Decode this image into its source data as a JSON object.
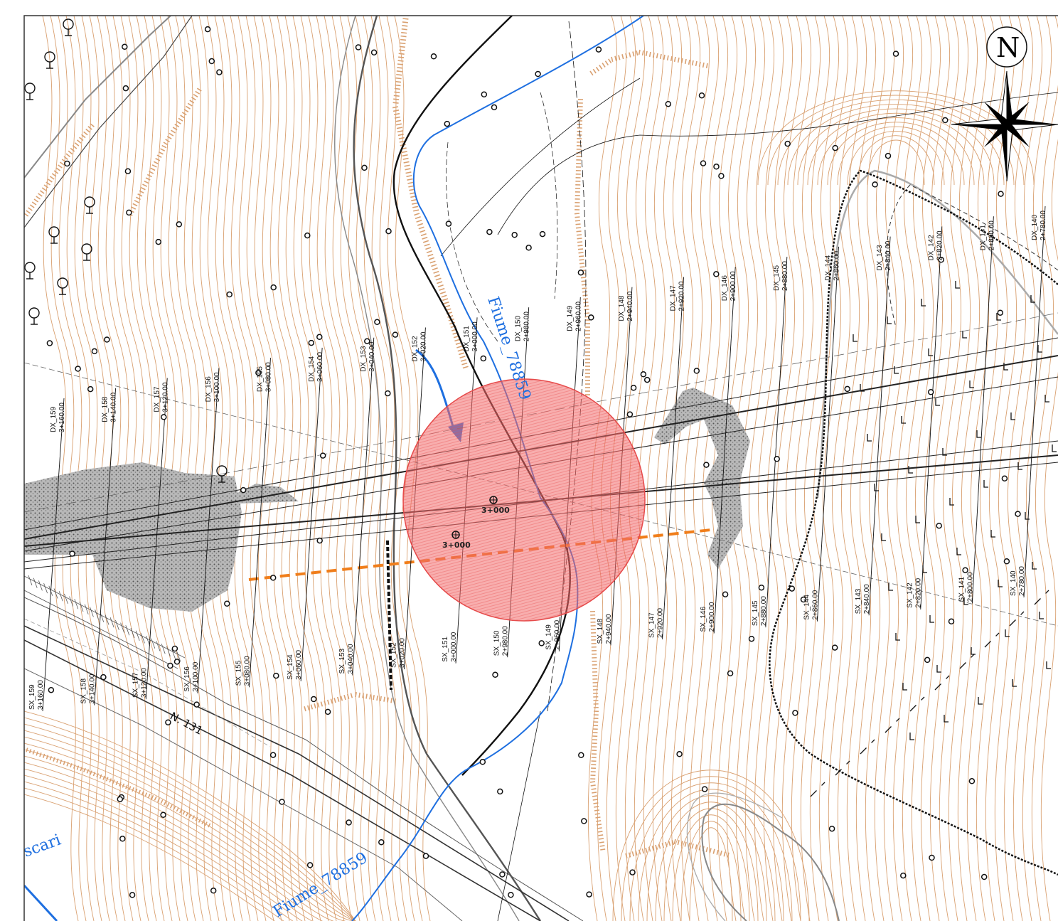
{
  "colors": {
    "contour": "#d9a070",
    "river": "#1e6fe0",
    "alignment": "#222222",
    "highlight_fill": "#f26b6b",
    "highlight_stroke": "#e64a4a",
    "orange_dash": "#f07e1b",
    "stipple": "#9a9a9a",
    "background": "#ffffff"
  },
  "north": {
    "letter": "N"
  },
  "river_labels": [
    {
      "id": "river-label-upper",
      "text": "Fiume_78859"
    },
    {
      "id": "river-label-lower",
      "text": "Fiume_78859"
    },
    {
      "id": "river-label-left",
      "text": "scari"
    }
  ],
  "road_label": {
    "text": "N. 131"
  },
  "chainage_markers": [
    {
      "id": "chainage-dx-3000",
      "text": "3+000"
    },
    {
      "id": "chainage-sx-3000",
      "text": "3+000"
    }
  ],
  "dx_sections": [
    {
      "name": "DX_159",
      "chainage": "3+160.00"
    },
    {
      "name": "DX_158",
      "chainage": "3+140.00"
    },
    {
      "name": "DX_157",
      "chainage": "3+120.00"
    },
    {
      "name": "DX_156",
      "chainage": "3+100.00"
    },
    {
      "name": "DX_155",
      "chainage": "3+080.00"
    },
    {
      "name": "DX_154",
      "chainage": "3+060.00"
    },
    {
      "name": "DX_153",
      "chainage": "3+040.00"
    },
    {
      "name": "DX_152",
      "chainage": "3+020.00"
    },
    {
      "name": "DX_151",
      "chainage": "3+000.00"
    },
    {
      "name": "DX_150",
      "chainage": "2+980.00"
    },
    {
      "name": "DX_149",
      "chainage": "2+960.00"
    },
    {
      "name": "DX_148",
      "chainage": "2+940.00"
    },
    {
      "name": "DX_147",
      "chainage": "2+920.00"
    },
    {
      "name": "DX_146",
      "chainage": "2+900.00"
    },
    {
      "name": "DX_145",
      "chainage": "2+880.00"
    },
    {
      "name": "DX_144",
      "chainage": "2+860.00"
    },
    {
      "name": "DX_143",
      "chainage": "2+840.00"
    },
    {
      "name": "DX_142",
      "chainage": "2+820.00"
    },
    {
      "name": "DX_141",
      "chainage": "2+800.00"
    },
    {
      "name": "DX_140",
      "chainage": "2+780.00"
    }
  ],
  "sx_sections": [
    {
      "name": "SX_159",
      "chainage": "3+160.00"
    },
    {
      "name": "SX_158",
      "chainage": "3+140.00"
    },
    {
      "name": "SX_157",
      "chainage": "3+120.00"
    },
    {
      "name": "SX_156",
      "chainage": "3+100.00"
    },
    {
      "name": "SX_155",
      "chainage": "3+080.00"
    },
    {
      "name": "SX_154",
      "chainage": "3+060.00"
    },
    {
      "name": "SX_153",
      "chainage": "3+040.00"
    },
    {
      "name": "SX_152",
      "chainage": "3+020.00"
    },
    {
      "name": "SX_151",
      "chainage": "3+000.00"
    },
    {
      "name": "SX_150",
      "chainage": "2+980.00"
    },
    {
      "name": "SX_149",
      "chainage": "2+960.00"
    },
    {
      "name": "SX_148",
      "chainage": "2+940.00"
    },
    {
      "name": "SX_147",
      "chainage": "2+920.00"
    },
    {
      "name": "SX_146",
      "chainage": "2+900.00"
    },
    {
      "name": "SX_145",
      "chainage": "2+880.00"
    },
    {
      "name": "SX_144",
      "chainage": "2+860.00"
    },
    {
      "name": "SX_143",
      "chainage": "2+840.00"
    },
    {
      "name": "SX_142",
      "chainage": "2+820.00"
    },
    {
      "name": "SX_141",
      "chainage": "2+800.00"
    },
    {
      "name": "SX_140",
      "chainage": "2+780.00"
    }
  ]
}
